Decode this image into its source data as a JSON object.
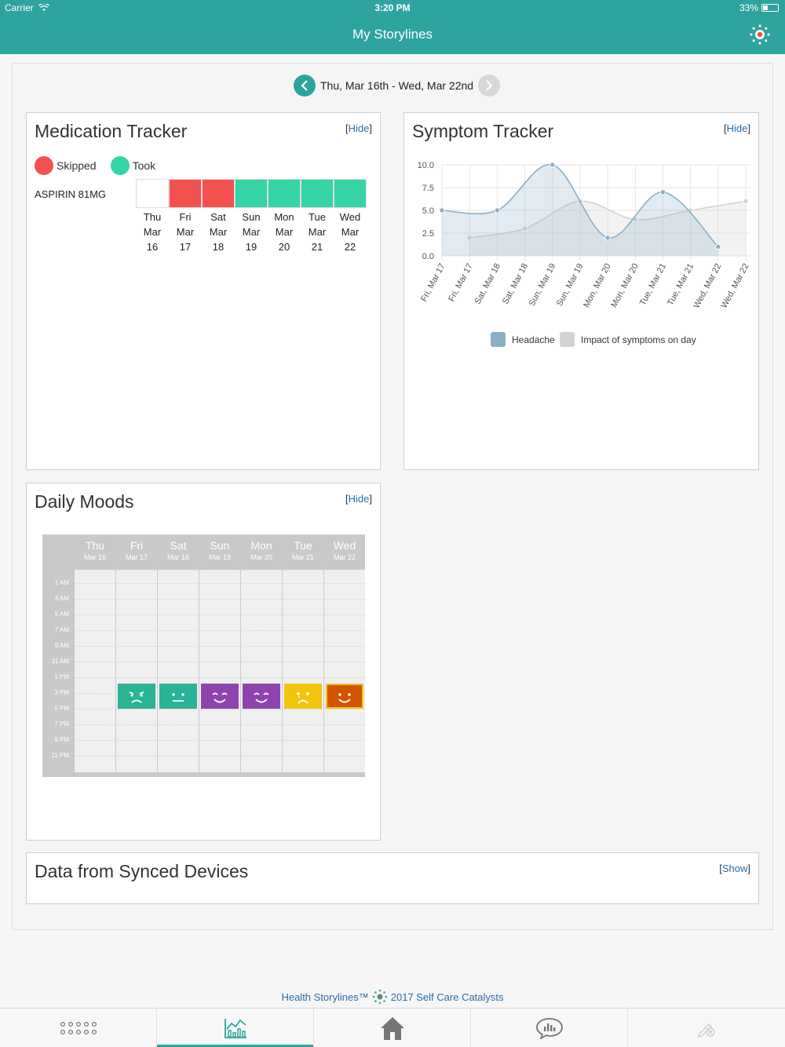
{
  "status": {
    "carrier": "Carrier",
    "time": "3:20 PM",
    "battery": "33%"
  },
  "nav": {
    "title": "My Storylines",
    "logo_icon": "storylines-logo-icon"
  },
  "date_range": {
    "label": "Thu, Mar 16th - Wed, Mar 22nd",
    "prev_icon": "chevron-left-icon",
    "next_icon": "chevron-right-icon"
  },
  "medication": {
    "title": "Medication Tracker",
    "hide_label": "Hide",
    "legend": [
      {
        "label": "Skipped",
        "color": "#f2514f"
      },
      {
        "label": "Took",
        "color": "#35d4a6"
      }
    ],
    "med_name": "ASPIRIN 81MG",
    "days": [
      {
        "d": "Thu",
        "m": "Mar",
        "n": "16",
        "status": "none"
      },
      {
        "d": "Fri",
        "m": "Mar",
        "n": "17",
        "status": "skipped"
      },
      {
        "d": "Sat",
        "m": "Mar",
        "n": "18",
        "status": "skipped"
      },
      {
        "d": "Sun",
        "m": "Mar",
        "n": "19",
        "status": "took"
      },
      {
        "d": "Mon",
        "m": "Mar",
        "n": "20",
        "status": "took"
      },
      {
        "d": "Tue",
        "m": "Mar",
        "n": "21",
        "status": "took"
      },
      {
        "d": "Wed",
        "m": "Mar",
        "n": "22",
        "status": "took"
      }
    ]
  },
  "symptom": {
    "title": "Symptom Tracker",
    "hide_label": "Hide"
  },
  "chart_data": {
    "type": "line",
    "x": [
      "Fri, Mar 17",
      "Fri, Mar 17",
      "Sat, Mar 18",
      "Sat, Mar 18",
      "Sun, Mar 19",
      "Sun, Mar 19",
      "Mon, Mar 20",
      "Mon, Mar 20",
      "Tue, Mar 21",
      "Tue, Mar 21",
      "Wed, Mar 22",
      "Wed, Mar 22"
    ],
    "yticks": [
      "10.0",
      "7.5",
      "5.0",
      "2.5",
      "0.0"
    ],
    "ylim": [
      0,
      10
    ],
    "series": [
      {
        "name": "Headache",
        "color": "#8aafc7",
        "points": [
          [
            0,
            5.0
          ],
          [
            2,
            5.0
          ],
          [
            4,
            10.0
          ],
          [
            6,
            2.0
          ],
          [
            8,
            7.0
          ],
          [
            10,
            1.0
          ]
        ]
      },
      {
        "name": "Impact of symptoms on day",
        "color": "#d3d3d3",
        "points": [
          [
            1,
            2.0
          ],
          [
            3,
            3.0
          ],
          [
            5,
            6.0
          ],
          [
            7,
            4.0
          ],
          [
            9,
            5.0
          ],
          [
            11,
            6.0
          ]
        ]
      }
    ],
    "legend_position": "bottom",
    "grid": true
  },
  "moods": {
    "title": "Daily Moods",
    "hide_label": "Hide",
    "days": [
      {
        "d": "Thu",
        "m": "Mar 16"
      },
      {
        "d": "Fri",
        "m": "Mar 17"
      },
      {
        "d": "Sat",
        "m": "Mar 18"
      },
      {
        "d": "Sun",
        "m": "Mar 19"
      },
      {
        "d": "Mon",
        "m": "Mar 20"
      },
      {
        "d": "Tue",
        "m": "Mar 21"
      },
      {
        "d": "Wed",
        "m": "Mar 22"
      }
    ],
    "times": [
      "1 AM",
      "3 AM",
      "5 AM",
      "7 AM",
      "9 AM",
      "11 AM",
      "1 PM",
      "3 PM",
      "5 PM",
      "7 PM",
      "9 PM",
      "11 PM"
    ],
    "entries": [
      {
        "day": 1,
        "slot": 7,
        "mood": "angry",
        "color": "#2bb396"
      },
      {
        "day": 2,
        "slot": 7,
        "mood": "neutral",
        "color": "#2bb396"
      },
      {
        "day": 3,
        "slot": 7,
        "mood": "content",
        "color": "#8e44ad"
      },
      {
        "day": 4,
        "slot": 7,
        "mood": "content",
        "color": "#8e44ad"
      },
      {
        "day": 5,
        "slot": 7,
        "mood": "sad",
        "color": "#f1c40f"
      },
      {
        "day": 6,
        "slot": 7,
        "mood": "happy",
        "color": "#d35400"
      }
    ]
  },
  "synced": {
    "title": "Data from Synced Devices",
    "show_label": "Show"
  },
  "footer": {
    "brand": "Health Storylines™",
    "copyright": "2017 Self Care Catalysts"
  },
  "tabs": [
    {
      "name": "tab-menu",
      "icon": "dots-grid-icon"
    },
    {
      "name": "tab-storylines",
      "icon": "chart-icon",
      "active": true
    },
    {
      "name": "tab-home",
      "icon": "home-icon"
    },
    {
      "name": "tab-insights",
      "icon": "chat-chart-icon"
    },
    {
      "name": "tab-disabled",
      "icon": "pen-off-icon"
    }
  ],
  "accent": "#2ea49f"
}
